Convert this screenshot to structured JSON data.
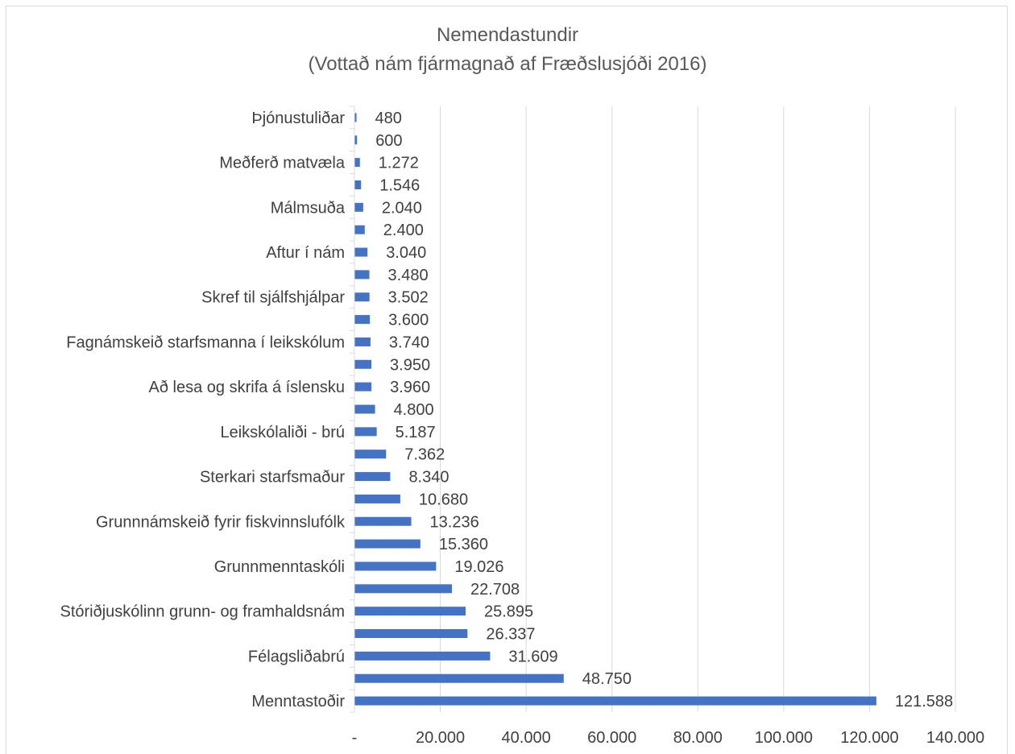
{
  "chart_data": {
    "type": "bar",
    "orientation": "horizontal",
    "title_line1": "Nemendastundir",
    "title_line2": "(Vottað nám fjármagnað af Fræðslusjóði 2016)",
    "xlabel": "",
    "ylabel": "",
    "xlim": [
      0,
      140000
    ],
    "x_ticks": [
      0,
      20000,
      40000,
      60000,
      80000,
      100000,
      120000,
      140000
    ],
    "x_tick_labels": [
      "-",
      "20.000",
      "40.000",
      "60.000",
      "80.000",
      "100.000",
      "120.000",
      "140.000"
    ],
    "grid": "vertical",
    "bar_color": "#4472c4",
    "categories": [
      "Þjónustuliðar",
      "",
      "Meðferð matvæla",
      "",
      "Málmsuða",
      "",
      "Aftur í nám",
      "",
      "Skref til sjálfshjálpar",
      "",
      "Fagnámskeið starfsmanna í leikskólum",
      "",
      "Að lesa og skrifa á íslensku",
      "",
      "Leikskólaliði - brú",
      "",
      "Sterkari starfsmaður",
      "",
      "Grunnnámskeið fyrir fiskvinnslufólk",
      "",
      "Grunnmenntaskóli",
      "",
      "Stóriðjuskólinn grunn- og framhaldsnám",
      "",
      "Félagsliðabrú",
      "",
      "Menntastoðir"
    ],
    "values": [
      480,
      600,
      1272,
      1546,
      2040,
      2400,
      3040,
      3480,
      3502,
      3600,
      3740,
      3950,
      3960,
      4800,
      5187,
      7362,
      8340,
      10680,
      13236,
      15360,
      19026,
      22708,
      25895,
      26337,
      31609,
      48750,
      121588
    ],
    "value_labels": [
      "480",
      "600",
      "1.272",
      "1.546",
      "2.040",
      "2.400",
      "3.040",
      "3.480",
      "3.502",
      "3.600",
      "3.740",
      "3.950",
      "3.960",
      "4.800",
      "5.187",
      "7.362",
      "8.340",
      "10.680",
      "13.236",
      "15.360",
      "19.026",
      "22.708",
      "25.895",
      "26.337",
      "31.609",
      "48.750",
      "121.588"
    ]
  }
}
